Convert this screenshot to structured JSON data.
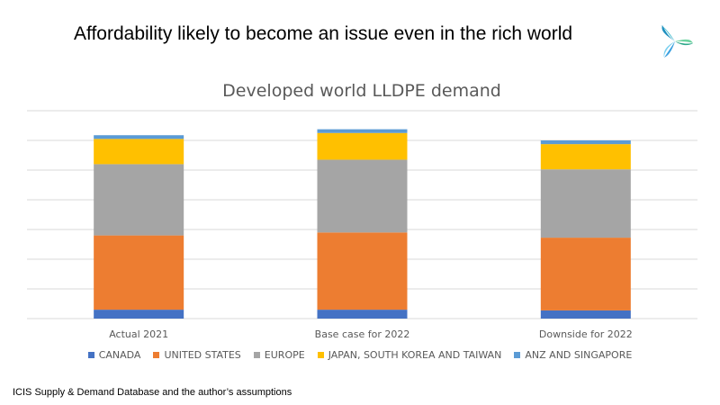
{
  "slide": {
    "title": "Affordability likely to become an issue even in the rich world",
    "source": "ICIS Supply  & Demand Database and the author’s assumptions"
  },
  "chart_data": {
    "type": "bar",
    "stacked": true,
    "title": "Developed world LLDPE demand",
    "categories": [
      "Actual 2021",
      "Base case for 2022",
      "Downside for 2022"
    ],
    "series": [
      {
        "name": "CANADA",
        "color": "#4472C4",
        "values": [
          0.6,
          0.6,
          0.55
        ]
      },
      {
        "name": "UNITED STATES",
        "color": "#ED7D31",
        "values": [
          5.0,
          5.2,
          4.9
        ]
      },
      {
        "name": "EUROPE",
        "color": "#A5A5A5",
        "values": [
          4.8,
          4.9,
          4.6
        ]
      },
      {
        "name": "JAPAN, SOUTH KOREA AND TAIWAN",
        "color": "#FFC000",
        "values": [
          1.7,
          1.8,
          1.7
        ]
      },
      {
        "name": "ANZ AND SINGAPORE",
        "color": "#5B9BD5",
        "values": [
          0.25,
          0.25,
          0.25
        ]
      }
    ],
    "ylim": [
      0,
      14
    ],
    "grid": true,
    "legend_position": "bottom"
  }
}
